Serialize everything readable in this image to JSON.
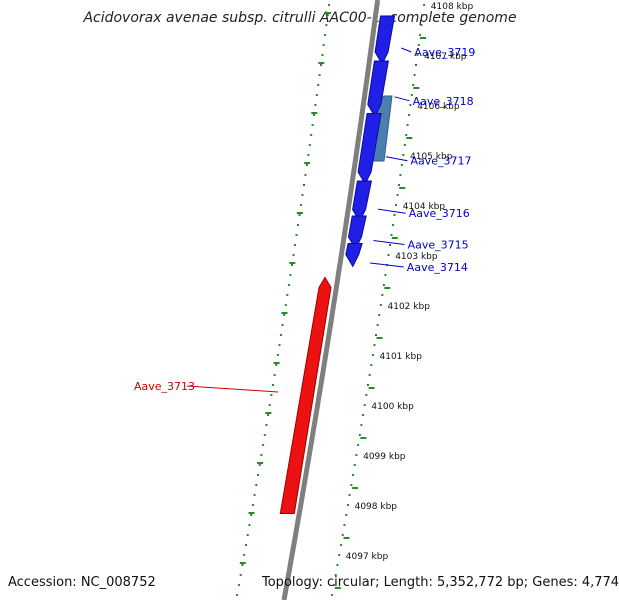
{
  "title": "Acidovorax avenae subsp. citrulli AAC00-1, complete genome",
  "footer": {
    "accession": "Accession: NC_008752",
    "summary": "Topology: circular; Length: 5,352,772 bp; Genes: 4,774"
  },
  "colors": {
    "forward_gene": "#1f1fe6",
    "reverse_gene": "#ee1111",
    "other_feature": "#4a7fb0",
    "backbone": "#7f7f7f",
    "tick_dots": "#2a8a2a",
    "forward_label": "#0000cc",
    "reverse_label": "#cc0000"
  },
  "scale": {
    "unit": "kbp",
    "ticks": [
      {
        "pos": 4108,
        "label": "4108 kbp"
      },
      {
        "pos": 4107,
        "label": "4107 kbp"
      },
      {
        "pos": 4106,
        "label": "4106 kbp"
      },
      {
        "pos": 4105,
        "label": "4105 kbp"
      },
      {
        "pos": 4104,
        "label": "4104 kbp"
      },
      {
        "pos": 4103,
        "label": "4103 kbp"
      },
      {
        "pos": 4102,
        "label": "4102 kbp"
      },
      {
        "pos": 4101,
        "label": "4101 kbp"
      },
      {
        "pos": 4100,
        "label": "4100 kbp"
      },
      {
        "pos": 4099,
        "label": "4099 kbp"
      },
      {
        "pos": 4098,
        "label": "4098 kbp"
      },
      {
        "pos": 4097,
        "label": "4097 kbp"
      }
    ]
  },
  "genes": [
    {
      "name": "Aave_3719",
      "strand": "+",
      "start_kbp": 4107.0,
      "end_kbp": 4107.8
    },
    {
      "name": "Aave_3718",
      "strand": "+",
      "start_kbp": 4105.95,
      "end_kbp": 4106.9
    },
    {
      "name": "Aave_3717",
      "strand": "+",
      "start_kbp": 4104.6,
      "end_kbp": 4105.85
    },
    {
      "name": "Aave_3716",
      "strand": "+",
      "start_kbp": 4103.85,
      "end_kbp": 4104.5
    },
    {
      "name": "Aave_3715",
      "strand": "+",
      "start_kbp": 4103.3,
      "end_kbp": 4103.8
    },
    {
      "name": "Aave_3714",
      "strand": "+",
      "start_kbp": 4102.95,
      "end_kbp": 4103.25
    },
    {
      "name": "Aave_3713",
      "strand": "-",
      "start_kbp": 4097.85,
      "end_kbp": 4102.45
    }
  ],
  "features": [
    {
      "type": "other",
      "start_kbp": 4104.9,
      "end_kbp": 4106.2
    }
  ]
}
